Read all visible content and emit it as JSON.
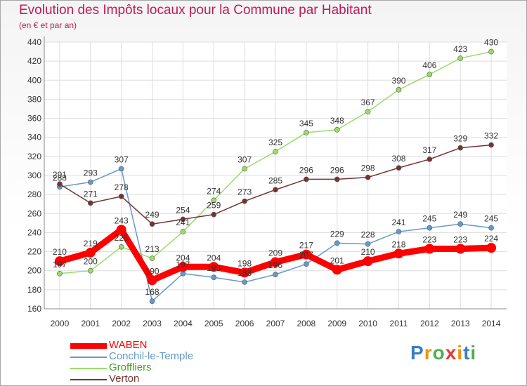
{
  "chart_data": {
    "type": "line",
    "title": "Evolution des Impôts locaux pour la Commune par Habitant",
    "subtitle": "(en € et par an)",
    "xlabel": "",
    "ylabel": "",
    "categories": [
      "2000",
      "2001",
      "2002",
      "2003",
      "2004",
      "2005",
      "2006",
      "2007",
      "2008",
      "2009",
      "2010",
      "2011",
      "2012",
      "2013",
      "2014"
    ],
    "ylim": [
      160,
      440
    ],
    "yticks": [
      160,
      180,
      200,
      220,
      240,
      260,
      280,
      300,
      320,
      340,
      360,
      380,
      400,
      420,
      440
    ],
    "grid": true,
    "legend_position": "bottom-left",
    "series": [
      {
        "name": "WABEN",
        "color": "#ff0000",
        "values": [
          210,
          219,
          243,
          190,
          204,
          204,
          198,
          209,
          217,
          201,
          210,
          218,
          223,
          223,
          224
        ]
      },
      {
        "name": "Conchil-le-Temple",
        "color": "#6699cc",
        "values": [
          288,
          293,
          307,
          168,
          197,
          193,
          188,
          196,
          207,
          229,
          228,
          241,
          245,
          249,
          245
        ]
      },
      {
        "name": "Groffliers",
        "color": "#99dd66",
        "values": [
          197,
          200,
          225,
          213,
          241,
          274,
          307,
          325,
          345,
          348,
          367,
          390,
          406,
          423,
          430
        ]
      },
      {
        "name": "Verton",
        "color": "#773333",
        "values": [
          291,
          271,
          278,
          249,
          254,
          259,
          273,
          285,
          296,
          296,
          298,
          308,
          317,
          329,
          332
        ]
      }
    ]
  },
  "logo": {
    "letters": [
      "P",
      "r",
      "o",
      "x",
      "i",
      "t",
      "i"
    ],
    "colors": [
      "#3a7fc1",
      "#f39200",
      "#4caf50",
      "#e53935",
      "#f39200",
      "#3a7fc1",
      "#4caf50"
    ]
  }
}
